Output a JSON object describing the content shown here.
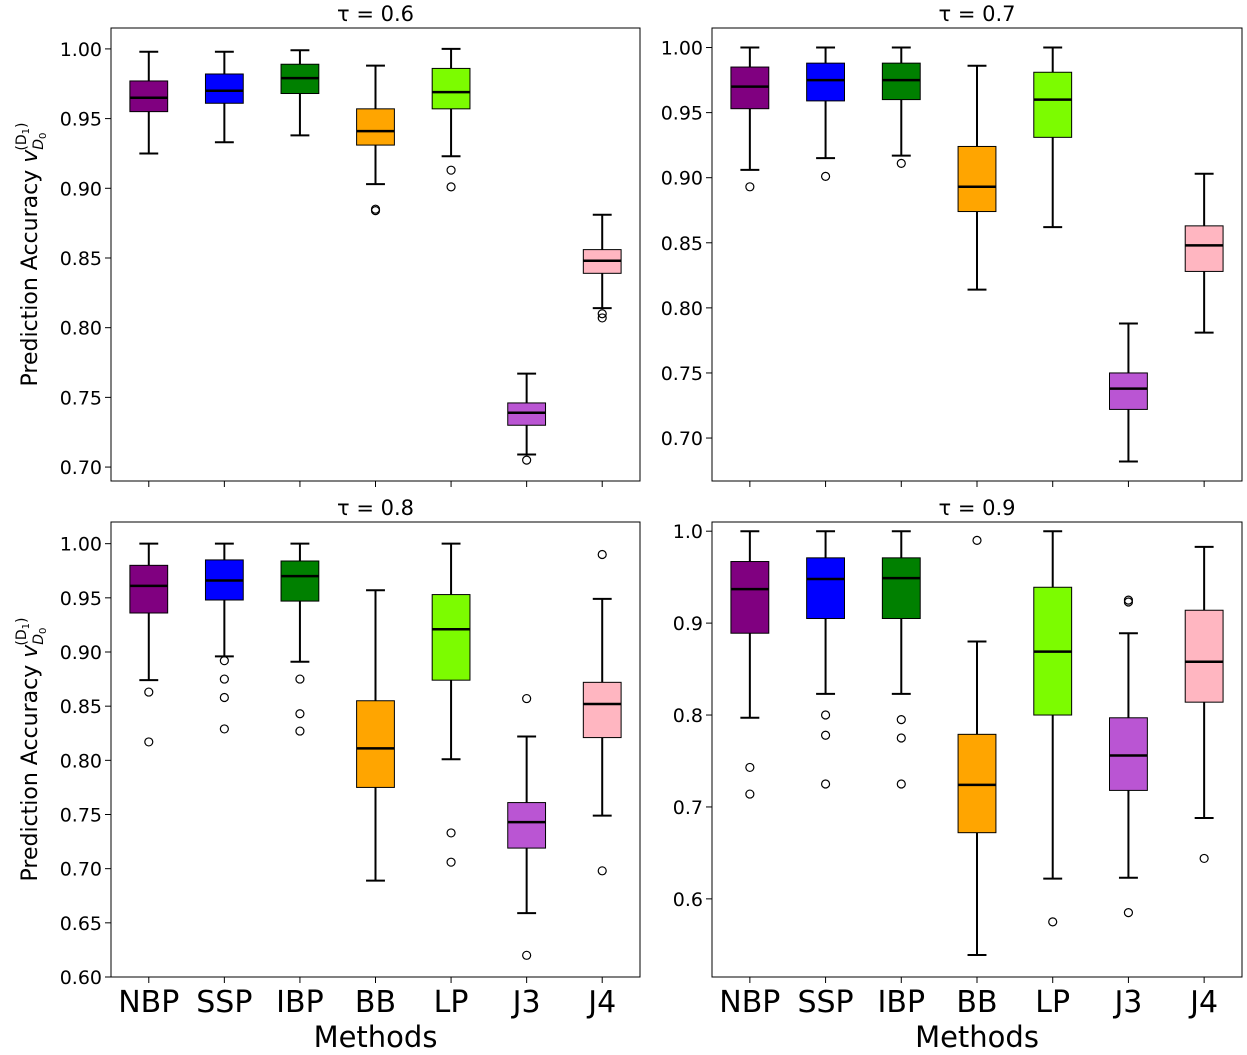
{
  "xlabel": "Methods",
  "ylabel_main": "Prediction Accuracy ",
  "ylabel_sym": "v",
  "ylabel_sub": "D",
  "ylabel_sub2": "0",
  "ylabel_sup": "(D",
  "ylabel_sup2": "1",
  "ylabel_sup3": ")",
  "chart_data": [
    {
      "type": "box",
      "title": "τ = 0.6",
      "ylim": [
        0.69,
        1.015
      ],
      "yticks": [
        0.7,
        0.75,
        0.8,
        0.85,
        0.9,
        0.95,
        1.0
      ],
      "ytick_labels": [
        "0.70",
        "0.75",
        "0.80",
        "0.85",
        "0.90",
        "0.95",
        "1.00"
      ],
      "categories": [
        "NBP",
        "SSP",
        "IBP",
        "BB",
        "LP",
        "J3",
        "J4"
      ],
      "show_xlabels": false,
      "boxes": [
        {
          "whislo": 0.925,
          "q1": 0.955,
          "med": 0.965,
          "q3": 0.977,
          "whishi": 0.998,
          "fliers": []
        },
        {
          "whislo": 0.933,
          "q1": 0.961,
          "med": 0.97,
          "q3": 0.982,
          "whishi": 0.998,
          "fliers": []
        },
        {
          "whislo": 0.938,
          "q1": 0.968,
          "med": 0.979,
          "q3": 0.989,
          "whishi": 0.999,
          "fliers": []
        },
        {
          "whislo": 0.903,
          "q1": 0.931,
          "med": 0.941,
          "q3": 0.957,
          "whishi": 0.988,
          "fliers": [
            0.884,
            0.885
          ]
        },
        {
          "whislo": 0.923,
          "q1": 0.957,
          "med": 0.969,
          "q3": 0.986,
          "whishi": 1.0,
          "fliers": [
            0.913,
            0.901
          ]
        },
        {
          "whislo": 0.709,
          "q1": 0.73,
          "med": 0.739,
          "q3": 0.746,
          "whishi": 0.767,
          "fliers": [
            0.705
          ]
        },
        {
          "whislo": 0.814,
          "q1": 0.839,
          "med": 0.848,
          "q3": 0.856,
          "whishi": 0.881,
          "fliers": [
            0.81,
            0.807
          ]
        }
      ]
    },
    {
      "type": "box",
      "title": "τ = 0.7",
      "ylim": [
        0.667,
        1.015
      ],
      "yticks": [
        0.7,
        0.75,
        0.8,
        0.85,
        0.9,
        0.95,
        1.0
      ],
      "ytick_labels": [
        "0.70",
        "0.75",
        "0.80",
        "0.85",
        "0.90",
        "0.95",
        "1.00"
      ],
      "categories": [
        "NBP",
        "SSP",
        "IBP",
        "BB",
        "LP",
        "J3",
        "J4"
      ],
      "show_xlabels": false,
      "boxes": [
        {
          "whislo": 0.906,
          "q1": 0.953,
          "med": 0.97,
          "q3": 0.985,
          "whishi": 1.0,
          "fliers": [
            0.893
          ]
        },
        {
          "whislo": 0.915,
          "q1": 0.959,
          "med": 0.975,
          "q3": 0.988,
          "whishi": 1.0,
          "fliers": [
            0.901
          ]
        },
        {
          "whislo": 0.917,
          "q1": 0.96,
          "med": 0.975,
          "q3": 0.988,
          "whishi": 1.0,
          "fliers": [
            0.911
          ]
        },
        {
          "whislo": 0.814,
          "q1": 0.874,
          "med": 0.893,
          "q3": 0.924,
          "whishi": 0.986,
          "fliers": []
        },
        {
          "whislo": 0.862,
          "q1": 0.931,
          "med": 0.96,
          "q3": 0.981,
          "whishi": 1.0,
          "fliers": []
        },
        {
          "whislo": 0.682,
          "q1": 0.722,
          "med": 0.738,
          "q3": 0.75,
          "whishi": 0.788,
          "fliers": []
        },
        {
          "whislo": 0.781,
          "q1": 0.828,
          "med": 0.848,
          "q3": 0.863,
          "whishi": 0.903,
          "fliers": []
        }
      ]
    },
    {
      "type": "box",
      "title": "τ = 0.8",
      "ylim": [
        0.6,
        1.02
      ],
      "yticks": [
        0.6,
        0.65,
        0.7,
        0.75,
        0.8,
        0.85,
        0.9,
        0.95,
        1.0
      ],
      "ytick_labels": [
        "0.60",
        "0.65",
        "0.70",
        "0.75",
        "0.80",
        "0.85",
        "0.90",
        "0.95",
        "1.00"
      ],
      "categories": [
        "NBP",
        "SSP",
        "IBP",
        "BB",
        "LP",
        "J3",
        "J4"
      ],
      "show_xlabels": true,
      "boxes": [
        {
          "whislo": 0.874,
          "q1": 0.936,
          "med": 0.961,
          "q3": 0.98,
          "whishi": 1.0,
          "fliers": [
            0.863,
            0.817
          ]
        },
        {
          "whislo": 0.896,
          "q1": 0.948,
          "med": 0.966,
          "q3": 0.985,
          "whishi": 1.0,
          "fliers": [
            0.892,
            0.875,
            0.858,
            0.829
          ]
        },
        {
          "whislo": 0.891,
          "q1": 0.947,
          "med": 0.97,
          "q3": 0.984,
          "whishi": 1.0,
          "fliers": [
            0.875,
            0.843,
            0.827
          ]
        },
        {
          "whislo": 0.689,
          "q1": 0.775,
          "med": 0.811,
          "q3": 0.855,
          "whishi": 0.957,
          "fliers": []
        },
        {
          "whislo": 0.801,
          "q1": 0.874,
          "med": 0.921,
          "q3": 0.953,
          "whishi": 1.0,
          "fliers": [
            0.733,
            0.706
          ]
        },
        {
          "whislo": 0.659,
          "q1": 0.719,
          "med": 0.743,
          "q3": 0.761,
          "whishi": 0.822,
          "fliers": [
            0.857,
            0.62
          ]
        },
        {
          "whislo": 0.749,
          "q1": 0.821,
          "med": 0.852,
          "q3": 0.872,
          "whishi": 0.949,
          "fliers": [
            0.99,
            0.698
          ]
        }
      ]
    },
    {
      "type": "box",
      "title": "τ = 0.9",
      "ylim": [
        0.515,
        1.01
      ],
      "yticks": [
        0.6,
        0.7,
        0.8,
        0.9,
        1.0
      ],
      "ytick_labels": [
        "0.6",
        "0.7",
        "0.8",
        "0.9",
        "1.0"
      ],
      "categories": [
        "NBP",
        "SSP",
        "IBP",
        "BB",
        "LP",
        "J3",
        "J4"
      ],
      "show_xlabels": true,
      "boxes": [
        {
          "whislo": 0.797,
          "q1": 0.889,
          "med": 0.937,
          "q3": 0.967,
          "whishi": 1.0,
          "fliers": [
            0.743,
            0.714
          ]
        },
        {
          "whislo": 0.823,
          "q1": 0.905,
          "med": 0.948,
          "q3": 0.971,
          "whishi": 1.0,
          "fliers": [
            0.8,
            0.778,
            0.725
          ]
        },
        {
          "whislo": 0.823,
          "q1": 0.905,
          "med": 0.949,
          "q3": 0.971,
          "whishi": 1.0,
          "fliers": [
            0.795,
            0.775,
            0.725
          ]
        },
        {
          "whislo": 0.539,
          "q1": 0.672,
          "med": 0.724,
          "q3": 0.779,
          "whishi": 0.88,
          "fliers": [
            0.99
          ]
        },
        {
          "whislo": 0.622,
          "q1": 0.8,
          "med": 0.869,
          "q3": 0.939,
          "whishi": 1.0,
          "fliers": [
            0.575
          ]
        },
        {
          "whislo": 0.623,
          "q1": 0.718,
          "med": 0.756,
          "q3": 0.797,
          "whishi": 0.889,
          "fliers": [
            0.925,
            0.923,
            0.585
          ]
        },
        {
          "whislo": 0.688,
          "q1": 0.814,
          "med": 0.858,
          "q3": 0.914,
          "whishi": 0.983,
          "fliers": [
            0.644
          ]
        }
      ]
    }
  ],
  "colors": [
    "#800080",
    "#0000ff",
    "#008000",
    "#ffa500",
    "#7cfc00",
    "#ba55d3",
    "#ffb6c1"
  ]
}
